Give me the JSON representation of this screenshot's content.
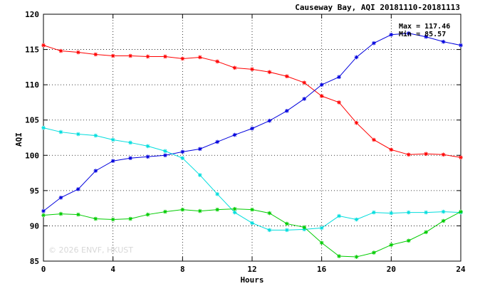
{
  "chart_data": {
    "type": "line",
    "title": "Causeway Bay, AQI 20181110-20181113",
    "xlabel": "Hours",
    "ylabel": "AQI",
    "xlim": [
      0,
      24
    ],
    "ylim": [
      85,
      120
    ],
    "xticks": [
      0,
      4,
      8,
      12,
      16,
      20,
      24
    ],
    "yticks": [
      85,
      90,
      95,
      100,
      105,
      110,
      115,
      120
    ],
    "grid": true,
    "max_label": "Max = 117.46",
    "min_label": "Min = 85.57",
    "watermark": "© 2026 ENVF, HKUST",
    "x": [
      0,
      1,
      2,
      3,
      4,
      5,
      6,
      7,
      8,
      9,
      10,
      11,
      12,
      13,
      14,
      15,
      16,
      17,
      18,
      19,
      20,
      21,
      22,
      23,
      24
    ],
    "series": [
      {
        "color": "#ff0000",
        "values": [
          115.6,
          114.8,
          114.6,
          114.3,
          114.1,
          114.1,
          114.0,
          114.0,
          113.7,
          113.9,
          113.3,
          112.4,
          112.2,
          111.8,
          111.2,
          110.3,
          108.4,
          107.5,
          104.6,
          102.2,
          100.8,
          100.1,
          100.2,
          100.1,
          99.7
        ]
      },
      {
        "color": "#0000dd",
        "values": [
          92.1,
          94.0,
          95.2,
          97.8,
          99.2,
          99.6,
          99.8,
          100.0,
          100.5,
          100.9,
          101.9,
          102.9,
          103.8,
          104.9,
          106.3,
          108.0,
          110.0,
          111.1,
          113.9,
          115.9,
          117.1,
          117.3,
          116.8,
          116.1,
          115.6
        ]
      },
      {
        "color": "#00dddd",
        "values": [
          103.9,
          103.3,
          103.0,
          102.8,
          102.2,
          101.8,
          101.3,
          100.6,
          99.6,
          97.2,
          94.5,
          91.9,
          90.4,
          89.4,
          89.4,
          89.5,
          89.7,
          91.4,
          90.9,
          91.9,
          91.8,
          91.9,
          91.9,
          92.0,
          91.9
        ]
      },
      {
        "color": "#00cc00",
        "values": [
          91.5,
          91.7,
          91.6,
          91.0,
          90.9,
          91.0,
          91.6,
          92.0,
          92.3,
          92.1,
          92.3,
          92.4,
          92.3,
          91.8,
          90.3,
          89.8,
          87.6,
          85.7,
          85.6,
          86.2,
          87.3,
          87.9,
          89.1,
          90.7,
          92.0
        ]
      }
    ]
  }
}
